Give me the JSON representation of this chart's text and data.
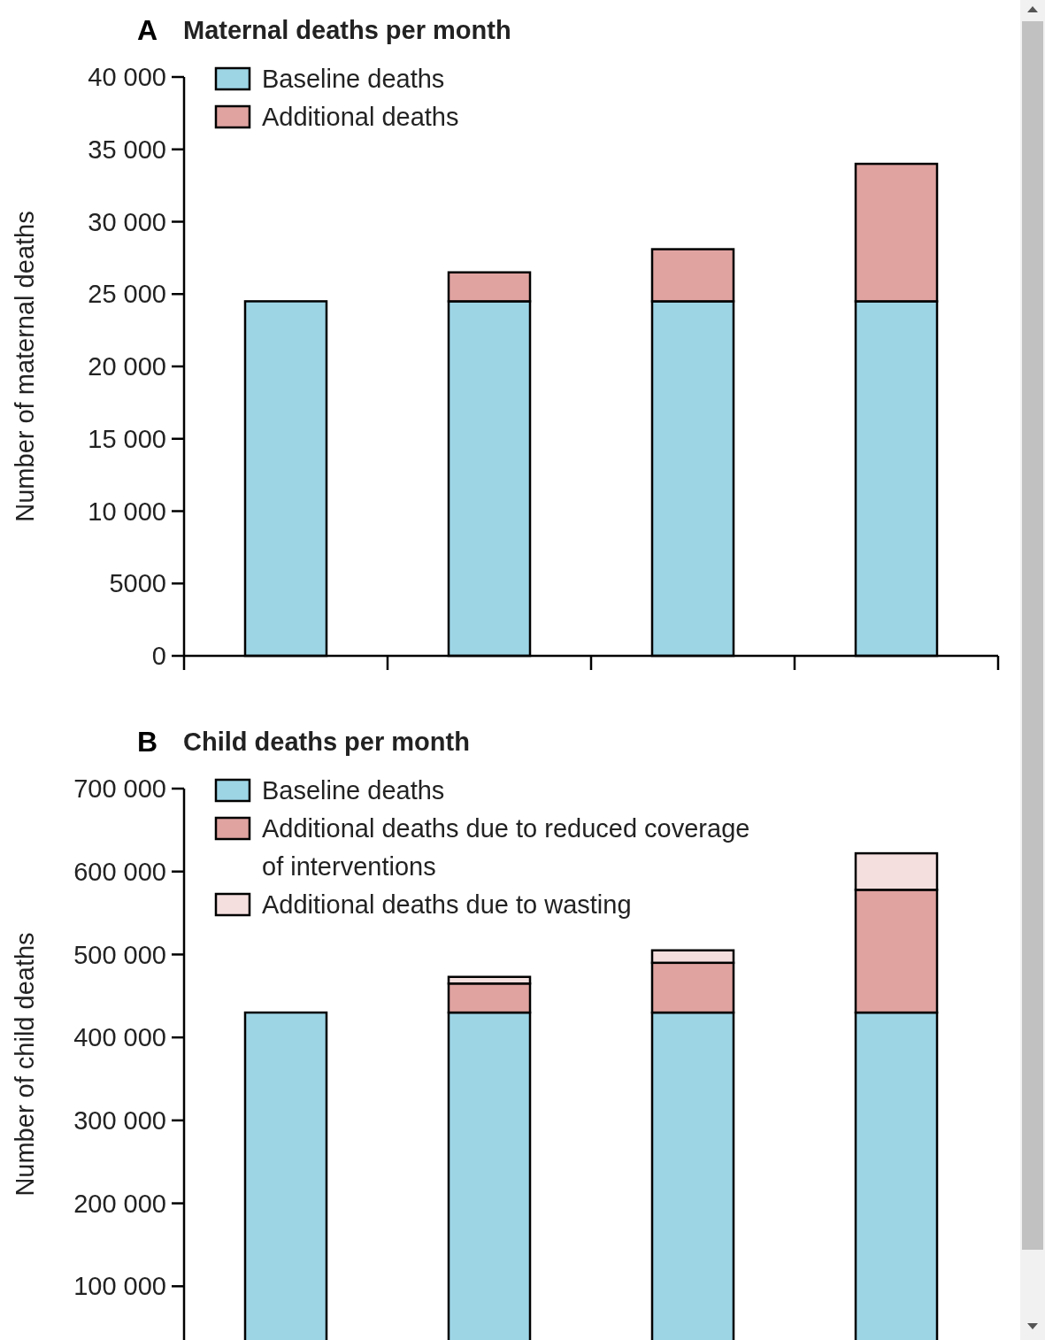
{
  "chart_data": [
    {
      "type": "bar",
      "title": "Maternal deaths per month",
      "annotations": [
        "A"
      ],
      "ylabel": "Number of maternal deaths",
      "stacked": true,
      "legend": "top left",
      "categories": [
        null,
        null,
        null,
        null
      ],
      "series": [
        {
          "name": "Baseline deaths",
          "color": "#9dd5e5",
          "values": [
            24500,
            24500,
            24500,
            24500
          ]
        },
        {
          "name": "Additional deaths",
          "color": "#e0a3a0",
          "values": [
            0,
            2000,
            3600,
            9500
          ]
        }
      ],
      "ylim": [
        0,
        40000
      ],
      "yticks": [
        0,
        5000,
        {
          "value": 10000,
          "label": "10 000"
        },
        {
          "value": 15000,
          "label": "15 000"
        },
        {
          "value": 20000,
          "label": "20 000"
        },
        {
          "value": 25000,
          "label": "25 000"
        },
        {
          "value": 30000,
          "label": "30 000"
        },
        {
          "value": 35000,
          "label": "35 000"
        },
        {
          "value": 40000,
          "label": "40 000"
        }
      ]
    },
    {
      "type": "bar",
      "title": "Child deaths per month",
      "annotations": [
        "B"
      ],
      "ylabel": "Number of child deaths",
      "stacked": true,
      "legend": "top left",
      "categories": [
        null,
        null,
        null,
        null
      ],
      "series": [
        {
          "name": "Baseline deaths",
          "color": "#9dd5e5",
          "values": [
            430000,
            430000,
            430000,
            430000
          ]
        },
        {
          "name": "Additional deaths due to reduced coverage of interventions",
          "color": "#e0a3a0",
          "values": [
            0,
            35000,
            60000,
            148000
          ]
        },
        {
          "name": "Additional deaths due to wasting",
          "color": "#f5dede",
          "values": [
            0,
            8000,
            15000,
            44000
          ]
        }
      ],
      "ylim": [
        0,
        700000
      ],
      "yticks": [
        {
          "value": 100000,
          "label": "100 000"
        },
        {
          "value": 200000,
          "label": "200 000"
        },
        {
          "value": 300000,
          "label": "300 000"
        },
        {
          "value": 400000,
          "label": "400 000"
        },
        {
          "value": 500000,
          "label": "500 000"
        },
        {
          "value": 600000,
          "label": "600 000"
        },
        {
          "value": 700000,
          "label": "700 000"
        }
      ]
    }
  ]
}
